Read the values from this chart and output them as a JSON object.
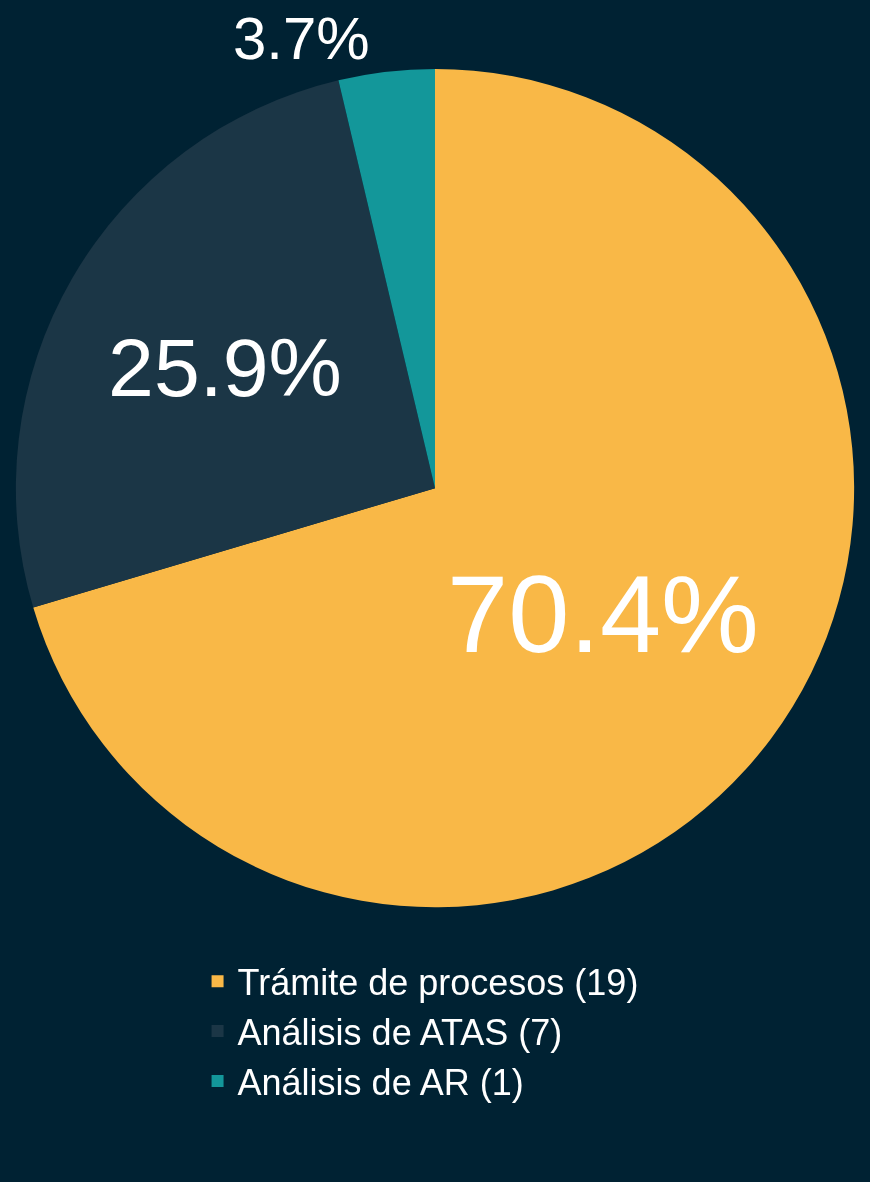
{
  "chart_data": {
    "type": "pie",
    "categories": [
      "Trámite de procesos (19)",
      "Análisis de ATAS (7)",
      "Análisis de AR (1)"
    ],
    "values": [
      70.4,
      25.9,
      3.7
    ],
    "colors": [
      "#f9b847",
      "#1b3646",
      "#13979a"
    ],
    "value_labels": [
      "70.4%",
      "25.9%",
      "3.7%"
    ],
    "legend": "bottom"
  }
}
